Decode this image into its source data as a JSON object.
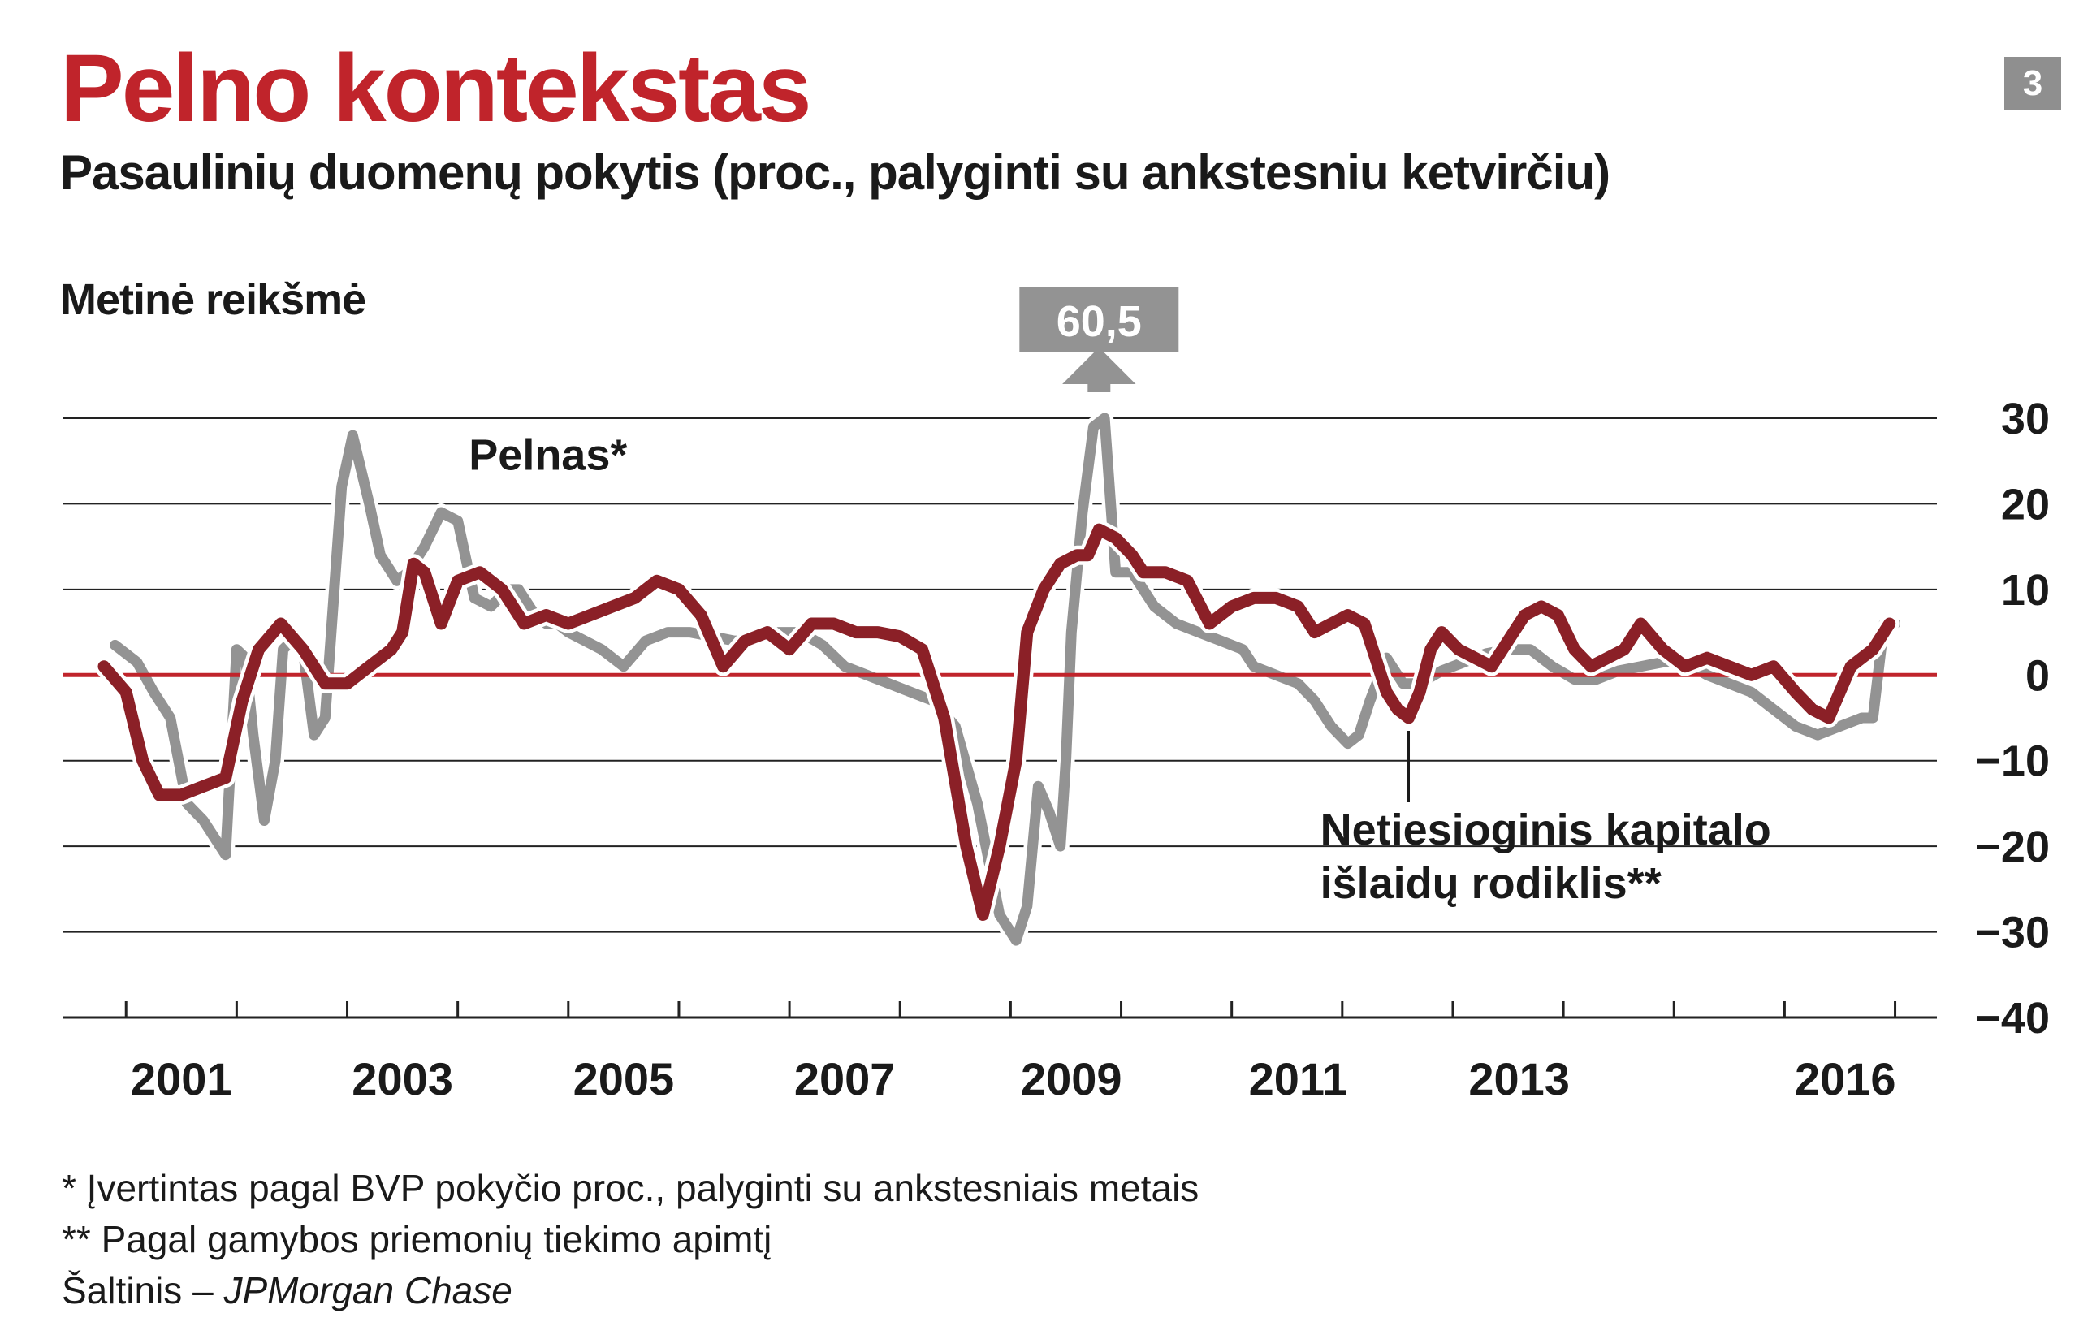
{
  "header": {
    "title": "Pelno kontekstas",
    "subtitle": "Pasaulinių duomenų pokytis (proc., palyginti su ankstesniu ketvirčiu)",
    "badge": "3",
    "unit_label": "Metinė reikšmė"
  },
  "chart_data": {
    "type": "line",
    "ylim": [
      -40,
      30
    ],
    "yticks": [
      30,
      20,
      10,
      0,
      -10,
      -20,
      -30,
      -40
    ],
    "ytick_labels": [
      "30",
      "20",
      "10",
      "0",
      "−10",
      "−20",
      "−30",
      "−40"
    ],
    "xlim": [
      2000.6,
      2017.2
    ],
    "xticks": [
      2000.8,
      2001.8,
      2002.8,
      2003.8,
      2004.8,
      2005.8,
      2006.8,
      2007.8,
      2008.8,
      2009.8,
      2010.8,
      2011.8,
      2012.8,
      2013.8,
      2014.8,
      2015.8,
      2016.8
    ],
    "xtick_labels": [
      {
        "x": 2001.3,
        "text": "2001"
      },
      {
        "x": 2003.3,
        "text": "2003"
      },
      {
        "x": 2005.3,
        "text": "2005"
      },
      {
        "x": 2007.3,
        "text": "2007"
      },
      {
        "x": 2009.35,
        "text": "2009"
      },
      {
        "x": 2011.4,
        "text": "2011"
      },
      {
        "x": 2013.4,
        "text": "2013"
      },
      {
        "x": 2016.35,
        "text": "2016"
      }
    ],
    "grid": true,
    "zero_line_color": "#c0242b",
    "series": [
      {
        "name": "Pelnas*",
        "color": "#939393",
        "x": [
          2000.7,
          2000.9,
          2001.05,
          2001.2,
          2001.35,
          2001.5,
          2001.7,
          2001.8,
          2001.88,
          2001.95,
          2002.05,
          2002.15,
          2002.22,
          2002.3,
          2002.4,
          2002.5,
          2002.6,
          2002.75,
          2002.85,
          2003.0,
          2003.1,
          2003.25,
          2003.35,
          2003.5,
          2003.65,
          2003.8,
          2003.95,
          2004.1,
          2004.25,
          2004.35,
          2004.5,
          2004.6,
          2004.7,
          2004.8,
          2004.95,
          2005.1,
          2005.3,
          2005.5,
          2005.7,
          2005.9,
          2006.1,
          2006.3,
          2006.5,
          2006.7,
          2006.9,
          2007.1,
          2007.3,
          2007.5,
          2007.7,
          2007.9,
          2008.1,
          2008.3,
          2008.5,
          2008.7,
          2008.85,
          2008.95,
          2009.05,
          2009.15,
          2009.25,
          2009.3,
          2009.35,
          2009.45,
          2009.55,
          2009.65,
          2009.75,
          2009.9,
          2010.1,
          2010.3,
          2010.5,
          2010.7,
          2010.9,
          2011.0,
          2011.2,
          2011.4,
          2011.55,
          2011.7,
          2011.85,
          2011.95,
          2012.05,
          2012.2,
          2012.35,
          2012.5,
          2012.7,
          2012.9,
          2013.1,
          2013.3,
          2013.5,
          2013.7,
          2013.9,
          2014.1,
          2014.3,
          2014.5,
          2014.7,
          2014.9,
          2015.1,
          2015.3,
          2015.5,
          2015.7,
          2015.9,
          2016.1,
          2016.3,
          2016.5,
          2016.6,
          2016.7,
          2016.8
        ],
        "y": [
          3.5,
          1.5,
          -2,
          -5,
          -15,
          -17,
          -21,
          3,
          2,
          -7,
          -17,
          -10,
          3,
          4,
          3,
          -7,
          -5,
          22,
          28,
          20,
          14,
          11,
          12,
          15,
          19,
          18,
          9,
          8,
          10,
          10,
          7,
          6,
          6,
          5,
          4,
          3,
          1,
          4,
          5,
          5,
          4.5,
          4,
          4,
          5,
          5,
          3.5,
          1,
          0,
          -1,
          -2,
          -3,
          -6,
          -15,
          -28,
          -31,
          -27,
          -13,
          -16,
          -20,
          -10,
          5,
          19,
          29,
          30,
          12,
          12,
          8,
          6,
          5,
          4,
          3,
          1,
          0,
          -1,
          -3,
          -6,
          -8,
          -7,
          -3,
          2,
          -1,
          -1,
          0.5,
          1.5,
          2.5,
          3,
          3,
          1,
          -0.5,
          -0.5,
          0.5,
          1,
          1.5,
          1.5,
          0,
          -1,
          -2,
          -4,
          -6,
          -7,
          -6,
          -5,
          -5,
          6,
          6
        ]
      },
      {
        "name": "Netiesioginis kapitalo išlaidų rodiklis**",
        "color": "#8b2027",
        "x": [
          2000.6,
          2000.8,
          2000.95,
          2001.1,
          2001.3,
          2001.5,
          2001.7,
          2001.85,
          2002.0,
          2002.2,
          2002.4,
          2002.6,
          2002.8,
          2003.0,
          2003.2,
          2003.3,
          2003.4,
          2003.5,
          2003.65,
          2003.8,
          2004.0,
          2004.2,
          2004.4,
          2004.6,
          2004.8,
          2005.0,
          2005.2,
          2005.4,
          2005.6,
          2005.8,
          2006.0,
          2006.2,
          2006.4,
          2006.6,
          2006.8,
          2007.0,
          2007.2,
          2007.4,
          2007.6,
          2007.8,
          2008.0,
          2008.2,
          2008.4,
          2008.55,
          2008.7,
          2008.85,
          2008.95,
          2009.1,
          2009.25,
          2009.4,
          2009.5,
          2009.6,
          2009.75,
          2009.9,
          2010.0,
          2010.2,
          2010.4,
          2010.6,
          2010.8,
          2011.0,
          2011.2,
          2011.4,
          2011.55,
          2011.7,
          2011.85,
          2012.0,
          2012.1,
          2012.2,
          2012.3,
          2012.4,
          2012.5,
          2012.6,
          2012.7,
          2012.85,
          2013.0,
          2013.15,
          2013.3,
          2013.45,
          2013.6,
          2013.75,
          2013.9,
          2014.05,
          2014.2,
          2014.35,
          2014.5,
          2014.7,
          2014.9,
          2015.1,
          2015.3,
          2015.5,
          2015.7,
          2015.9,
          2016.05,
          2016.2,
          2016.4,
          2016.6,
          2016.75
        ],
        "y": [
          1,
          -2,
          -10,
          -14,
          -14,
          -13,
          -12,
          -3,
          3,
          6,
          3,
          -1,
          -1,
          1,
          3,
          5,
          13,
          12,
          6,
          11,
          12,
          10,
          6,
          7,
          6,
          7,
          8,
          9,
          11,
          10,
          7,
          1,
          4,
          5,
          3,
          6,
          6,
          5,
          5,
          4.5,
          3,
          -5,
          -20,
          -28,
          -20,
          -10,
          5,
          10,
          13,
          14,
          14,
          17,
          16,
          14,
          12,
          12,
          11,
          6,
          8,
          9,
          9,
          8,
          5,
          6,
          7,
          6,
          2,
          -2,
          -4,
          -5,
          -2,
          3,
          5,
          3,
          2,
          1,
          4,
          7,
          8,
          7,
          3,
          1,
          2,
          3,
          6,
          3,
          1,
          2,
          1,
          0,
          1,
          -2,
          -4,
          -5,
          1,
          3,
          6
        ]
      }
    ],
    "annotations": [
      {
        "text": "Pelnas*",
        "x": 2003.9,
        "y": 24
      },
      {
        "text": "60,5",
        "x": 2009.6,
        "y": 60.5,
        "arrow": true
      },
      {
        "text": "Netiesioginis kapitalo",
        "text2": "išlaidų rodiklis**",
        "x": 2011.6,
        "y": -17
      }
    ]
  },
  "footnotes": {
    "note1": "* Įvertintas pagal BVP pokyčio proc., palyginti su ankstesniais metais",
    "note2": "** Pagal gamybos priemonių tiekimo apimtį",
    "source_prefix": "Šaltinis – ",
    "source_name": "JPMorgan Chase"
  }
}
